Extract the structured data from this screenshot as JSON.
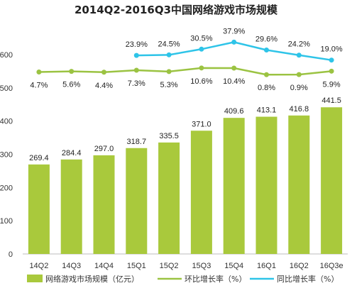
{
  "chart_data": {
    "type": "bar",
    "title": "2014Q2-2016Q3中国网络游戏市场规模",
    "categories": [
      "14Q2",
      "14Q3",
      "14Q4",
      "15Q1",
      "15Q2",
      "15Q3",
      "15Q4",
      "16Q1",
      "16Q2",
      "16Q3e"
    ],
    "ylim": [
      0,
      650
    ],
    "yticks": [
      0,
      100,
      200,
      300,
      400,
      500,
      600
    ],
    "series": [
      {
        "name": "网络游戏市场规模（亿元）",
        "type": "bar",
        "color": "#a9c93c",
        "values": [
          269.4,
          284.4,
          297.0,
          318.7,
          335.5,
          371.0,
          409.6,
          413.1,
          416.8,
          441.5
        ],
        "labels": [
          "269.4",
          "284.4",
          "297.0",
          "318.7",
          "335.5",
          "371.0",
          "409.6",
          "413.1",
          "416.8",
          "441.5"
        ]
      },
      {
        "name": "环比增长率（%）",
        "type": "line",
        "color": "#9bc342",
        "values": [
          4.7,
          5.6,
          4.4,
          7.3,
          5.3,
          10.6,
          10.4,
          0.8,
          0.9,
          5.9
        ],
        "labels": [
          "4.7%",
          "5.6%",
          "4.4%",
          "7.3%",
          "5.3%",
          "10.6%",
          "10.4%",
          "0.8%",
          "0.9%",
          "5.9%"
        ]
      },
      {
        "name": "同比增长率（%）",
        "type": "line",
        "color": "#2ec4e8",
        "values": [
          null,
          null,
          null,
          23.9,
          24.5,
          30.5,
          37.9,
          29.6,
          24.2,
          19.0
        ],
        "labels": [
          "",
          "",
          "",
          "23.9%",
          "24.5%",
          "30.5%",
          "37.9%",
          "29.6%",
          "24.2%",
          "19.0%"
        ]
      }
    ],
    "legend_position": "bottom",
    "grid": false
  }
}
